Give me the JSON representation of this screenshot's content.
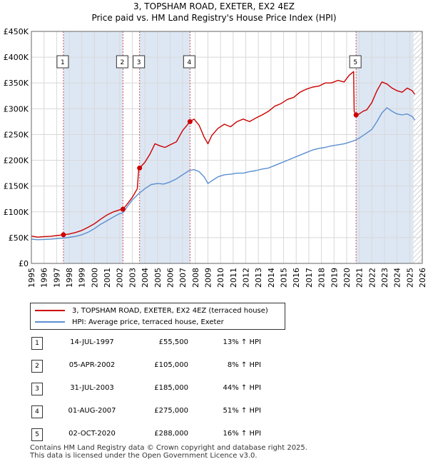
{
  "header": {
    "title": "3, TOPSHAM ROAD, EXETER, EX2 4EZ",
    "subtitle": "Price paid vs. HM Land Registry's House Price Index (HPI)"
  },
  "chart_data": {
    "type": "line",
    "title": "3, TOPSHAM ROAD, EXETER, EX2 4EZ",
    "subtitle": "Price paid vs. HM Land Registry's House Price Index (HPI)",
    "xlim": [
      1995,
      2026
    ],
    "ylim": [
      0,
      450000
    ],
    "x_ticks": [
      1995,
      1996,
      1997,
      1998,
      1999,
      2000,
      2001,
      2002,
      2003,
      2004,
      2005,
      2006,
      2007,
      2008,
      2009,
      2010,
      2011,
      2012,
      2013,
      2014,
      2015,
      2016,
      2017,
      2018,
      2019,
      2020,
      2021,
      2022,
      2023,
      2024,
      2025,
      2026
    ],
    "y_ticks": [
      {
        "value": 0,
        "label": "£0"
      },
      {
        "value": 50000,
        "label": "£50K"
      },
      {
        "value": 100000,
        "label": "£100K"
      },
      {
        "value": 150000,
        "label": "£150K"
      },
      {
        "value": 200000,
        "label": "£200K"
      },
      {
        "value": 250000,
        "label": "£250K"
      },
      {
        "value": 300000,
        "label": "£300K"
      },
      {
        "value": 350000,
        "label": "£350K"
      },
      {
        "value": 400000,
        "label": "£400K"
      },
      {
        "value": 450000,
        "label": "£450K"
      }
    ],
    "grid": true,
    "colors": {
      "property": "#cc0000",
      "hpi": "#5b8fd0",
      "shade": "#dde7f4",
      "vline": "#d05050",
      "grid": "#d8d8d8"
    },
    "shaded_ranges": [
      [
        1997.54,
        2002.26
      ],
      [
        2003.58,
        2007.58
      ],
      [
        2020.75,
        2025.3
      ]
    ],
    "hatch_from": 2025.3,
    "series": [
      {
        "name": "3, TOPSHAM ROAD, EXETER, EX2 4EZ (terraced house)",
        "key": "property",
        "x": [
          1995.0,
          1995.5,
          1996.0,
          1996.5,
          1997.0,
          1997.54,
          1998.0,
          1998.5,
          1999.0,
          1999.5,
          2000.0,
          2000.5,
          2001.0,
          2001.5,
          2002.0,
          2002.26,
          2002.6,
          2003.0,
          2003.4,
          2003.5,
          2003.58,
          2004.0,
          2004.4,
          2004.8,
          2005.2,
          2005.6,
          2006.0,
          2006.5,
          2007.0,
          2007.58,
          2007.9,
          2008.3,
          2008.7,
          2009.0,
          2009.3,
          2009.8,
          2010.3,
          2010.8,
          2011.3,
          2011.8,
          2012.3,
          2012.8,
          2013.3,
          2013.8,
          2014.3,
          2014.8,
          2015.3,
          2015.8,
          2016.3,
          2016.8,
          2017.3,
          2017.8,
          2018.3,
          2018.8,
          2019.3,
          2019.8,
          2020.2,
          2020.55,
          2020.6,
          2020.75,
          2021.0,
          2021.3,
          2021.6,
          2022.0,
          2022.4,
          2022.8,
          2023.2,
          2023.6,
          2024.0,
          2024.4,
          2024.8,
          2025.2,
          2025.4
        ],
        "values": [
          53000,
          51000,
          52000,
          52500,
          54000,
          55500,
          57000,
          60000,
          64000,
          70000,
          77000,
          86000,
          94000,
          100000,
          104000,
          105000,
          115000,
          128000,
          145000,
          180000,
          185000,
          196000,
          212000,
          232000,
          228000,
          225000,
          230000,
          236000,
          258000,
          275000,
          280000,
          268000,
          245000,
          232000,
          248000,
          262000,
          270000,
          265000,
          275000,
          280000,
          275000,
          282000,
          288000,
          295000,
          305000,
          310000,
          318000,
          322000,
          332000,
          338000,
          342000,
          344000,
          350000,
          350000,
          355000,
          352000,
          365000,
          372000,
          295000,
          288000,
          290000,
          295000,
          298000,
          312000,
          335000,
          352000,
          348000,
          340000,
          335000,
          332000,
          340000,
          335000,
          328000
        ]
      },
      {
        "name": "HPI: Average price, terraced house, Exeter",
        "key": "hpi",
        "x": [
          1995.0,
          1995.5,
          1996.0,
          1996.5,
          1997.0,
          1997.54,
          1998.0,
          1998.5,
          1999.0,
          1999.5,
          2000.0,
          2000.5,
          2001.0,
          2001.5,
          2002.0,
          2002.26,
          2002.6,
          2003.0,
          2003.5,
          2004.0,
          2004.5,
          2005.0,
          2005.5,
          2006.0,
          2006.5,
          2007.0,
          2007.5,
          2007.9,
          2008.3,
          2008.7,
          2009.0,
          2009.3,
          2009.8,
          2010.3,
          2010.8,
          2011.3,
          2011.8,
          2012.3,
          2012.8,
          2013.3,
          2013.8,
          2014.3,
          2014.8,
          2015.3,
          2015.8,
          2016.3,
          2016.8,
          2017.3,
          2017.8,
          2018.3,
          2018.8,
          2019.3,
          2019.8,
          2020.2,
          2020.6,
          2021.0,
          2021.3,
          2021.6,
          2022.0,
          2022.4,
          2022.8,
          2023.2,
          2023.6,
          2024.0,
          2024.4,
          2024.8,
          2025.2,
          2025.4
        ],
        "values": [
          47000,
          46000,
          46500,
          47000,
          48000,
          49000,
          50500,
          52500,
          55500,
          60500,
          67500,
          76000,
          83000,
          90000,
          96500,
          98000,
          110000,
          123000,
          135000,
          145000,
          153000,
          155000,
          154000,
          158000,
          164000,
          172000,
          180000,
          182000,
          178000,
          168000,
          155000,
          160000,
          168000,
          172000,
          173000,
          175000,
          175000,
          178000,
          180000,
          183000,
          185000,
          190000,
          195000,
          200000,
          205000,
          210000,
          215000,
          220000,
          223000,
          225000,
          228000,
          230000,
          232000,
          235000,
          238000,
          243000,
          248000,
          253000,
          260000,
          275000,
          292000,
          302000,
          295000,
          290000,
          288000,
          290000,
          285000,
          278000
        ]
      }
    ],
    "sales": [
      {
        "num": "1",
        "x": 1997.54,
        "price_value": 55500,
        "date": "14-JUL-1997",
        "price": "£55,500",
        "hpi": "13% ↑ HPI"
      },
      {
        "num": "2",
        "x": 2002.26,
        "price_value": 105000,
        "date": "05-APR-2002",
        "price": "£105,000",
        "hpi": "8% ↑ HPI"
      },
      {
        "num": "3",
        "x": 2003.58,
        "price_value": 185000,
        "date": "31-JUL-2003",
        "price": "£185,000",
        "hpi": "44% ↑ HPI"
      },
      {
        "num": "4",
        "x": 2007.58,
        "price_value": 275000,
        "date": "01-AUG-2007",
        "price": "£275,000",
        "hpi": "51% ↑ HPI"
      },
      {
        "num": "5",
        "x": 2020.75,
        "price_value": 288000,
        "date": "02-OCT-2020",
        "price": "£288,000",
        "hpi": "16% ↑ HPI"
      }
    ]
  },
  "legend": {
    "property_label": "3, TOPSHAM ROAD, EXETER, EX2 4EZ (terraced house)",
    "hpi_label": "HPI: Average price, terraced house, Exeter"
  },
  "footer": {
    "line1": "Contains HM Land Registry data © Crown copyright and database right 2025.",
    "line2": "This data is licensed under the Open Government Licence v3.0."
  }
}
